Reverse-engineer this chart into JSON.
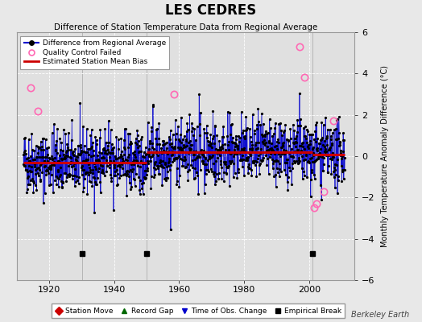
{
  "title": "LES CEDRES",
  "subtitle": "Difference of Station Temperature Data from Regional Average",
  "ylabel": "Monthly Temperature Anomaly Difference (°C)",
  "xlim": [
    1910,
    2014
  ],
  "ylim": [
    -6,
    6
  ],
  "yticks": [
    -6,
    -4,
    -2,
    0,
    2,
    4,
    6
  ],
  "xticks": [
    1920,
    1940,
    1960,
    1980,
    2000
  ],
  "background_color": "#e8e8e8",
  "plot_bg_color": "#e0e0e0",
  "line_color": "#0000cc",
  "bias_color": "#cc0000",
  "qc_color": "#ff69b4",
  "marker_color": "#000000",
  "vertical_line_color": "#8888dd",
  "seed": 42,
  "start_year": 1912.0,
  "end_year": 2011.0,
  "empirical_breaks": [
    1930,
    1950,
    2001
  ],
  "qc_failed_times": [
    1914.2,
    1916.5,
    1958.5,
    1997.0,
    1998.5,
    2001.5,
    2002.2,
    2004.5,
    2007.5
  ],
  "qc_failed_values": [
    3.3,
    2.2,
    3.0,
    5.3,
    3.8,
    -2.5,
    -2.3,
    -1.7,
    1.7
  ],
  "bias_segments": [
    {
      "x_start": 1912.0,
      "x_end": 1930.0,
      "bias": -0.3
    },
    {
      "x_start": 1930.0,
      "x_end": 1950.0,
      "bias": -0.3
    },
    {
      "x_start": 1950.0,
      "x_end": 2001.0,
      "bias": 0.18
    },
    {
      "x_start": 2001.0,
      "x_end": 2011.0,
      "bias": 0.08
    }
  ],
  "grid_color": "#ffffff",
  "grid_style": "--",
  "figsize": [
    5.24,
    4.0
  ],
  "dpi": 100,
  "watermark": "Berkeley Earth"
}
